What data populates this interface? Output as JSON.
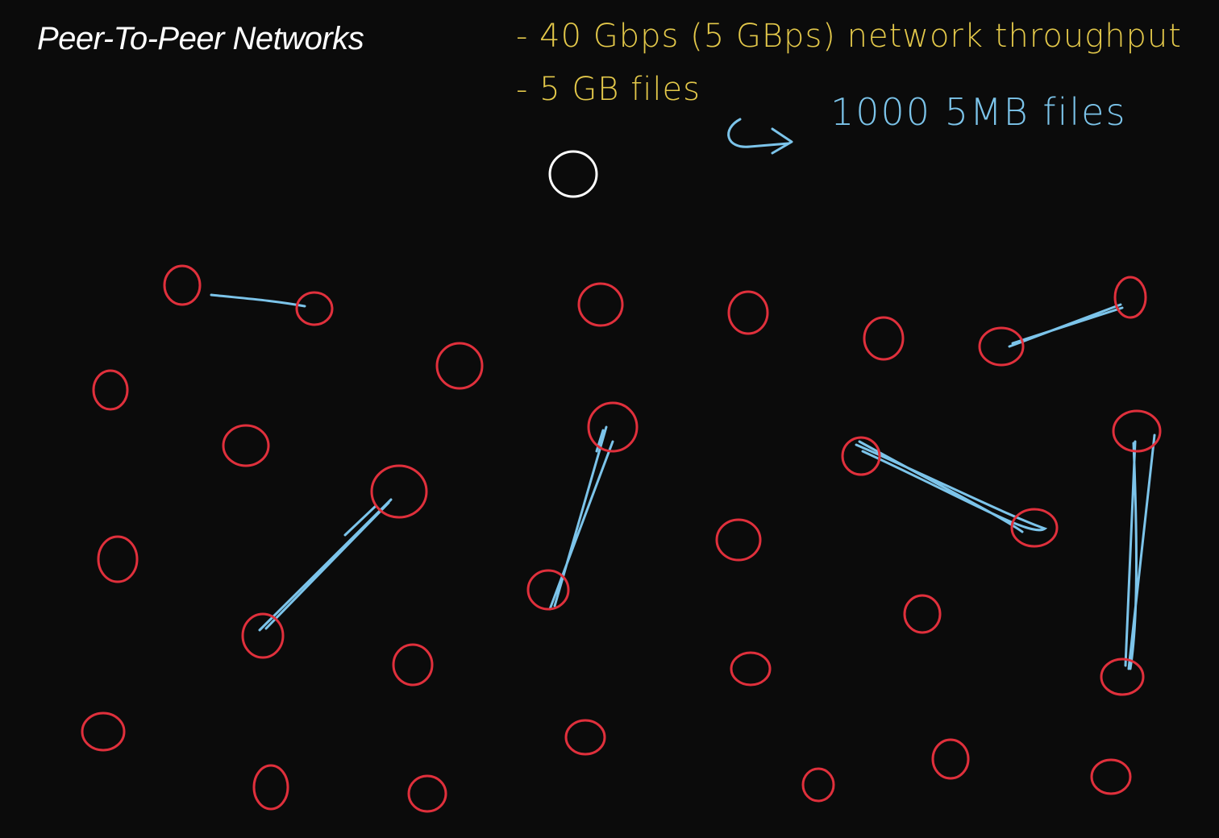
{
  "slide": {
    "title": "Peer-To-Peer Networks"
  },
  "annotations": {
    "throughput": "- 40 Gbps (5 GBps) network throughput",
    "file_size": "- 5 GB files",
    "split": "1000 5MB files"
  },
  "colors": {
    "background": "#0b0b0b",
    "peer": "#e0303c",
    "connection": "#7cc4ea",
    "note": "#e3c84a",
    "source_node": "#ffffff"
  }
}
